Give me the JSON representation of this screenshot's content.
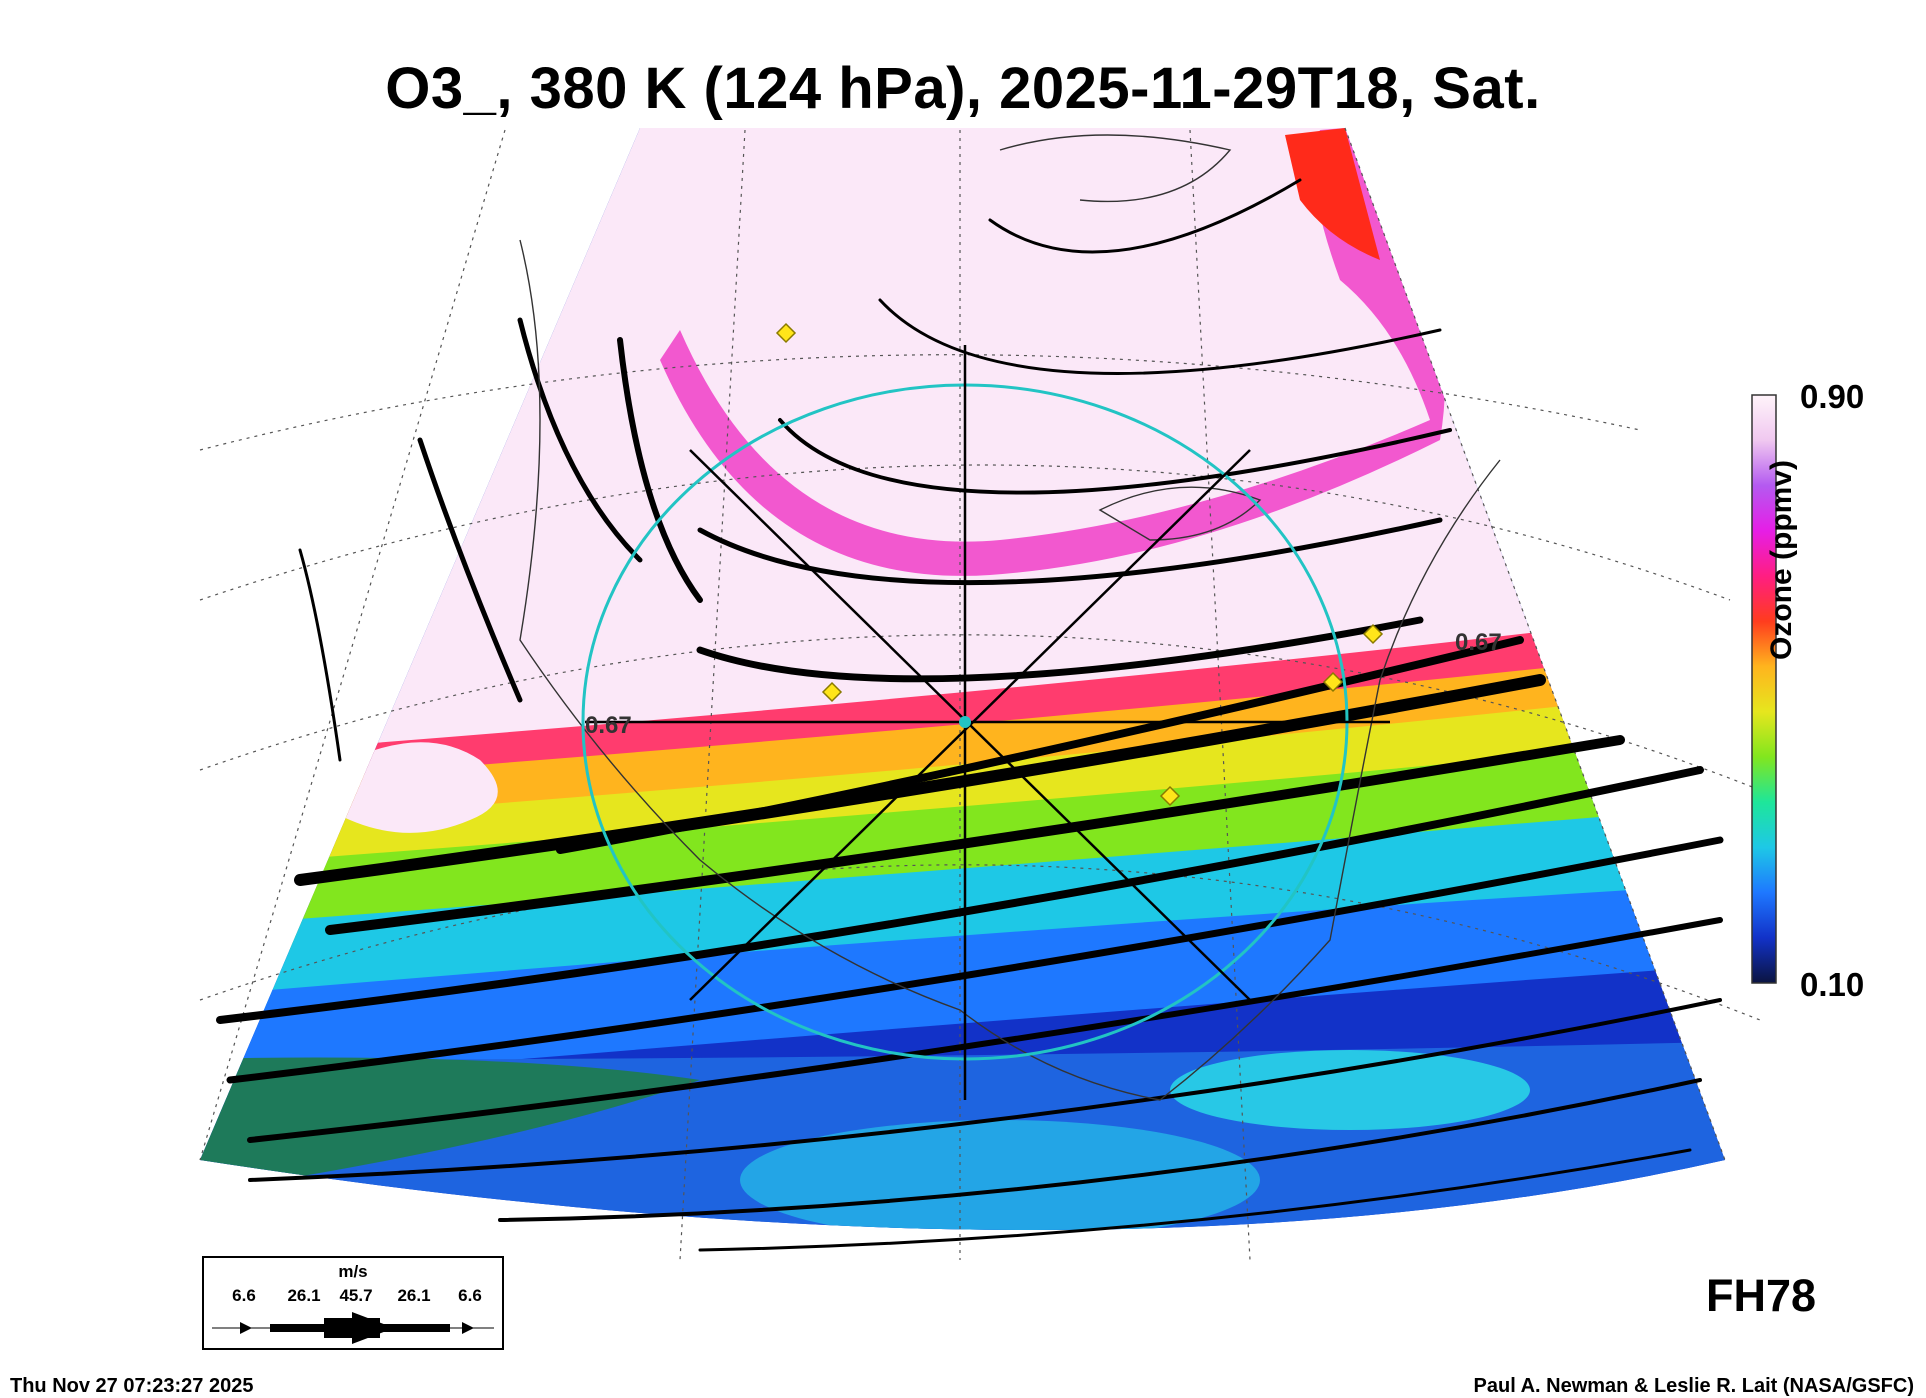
{
  "title": "O3_, 380 K (124 hPa), 2025-11-29T18, Sat.",
  "colorbar": {
    "title": "Ozone (ppmv)",
    "max_label": "0.90",
    "min_label": "0.10",
    "colors": [
      "#0b1440",
      "#1232c8",
      "#1e78ff",
      "#1ec8e6",
      "#1ee69a",
      "#82e61e",
      "#e6e61e",
      "#ffb41e",
      "#ff3c1e",
      "#ff1e82",
      "#e61ee6",
      "#b45af0",
      "#f0c8f0",
      "#fff4fa"
    ]
  },
  "map": {
    "contour_labels": [
      "0.67",
      "0.67"
    ],
    "cross_section_circle_color": "#22c4c4",
    "marker_color": "#ffe51a"
  },
  "wind_legend": {
    "unit": "m/s",
    "values": [
      "6.6",
      "26.1",
      "45.7",
      "26.1",
      "6.6"
    ]
  },
  "forecast_hour": "FH78",
  "footer": {
    "timestamp": "Thu Nov 27 07:23:27 2025",
    "credit": "Paul A. Newman & Leslie R. Lait (NASA/GSFC)"
  }
}
